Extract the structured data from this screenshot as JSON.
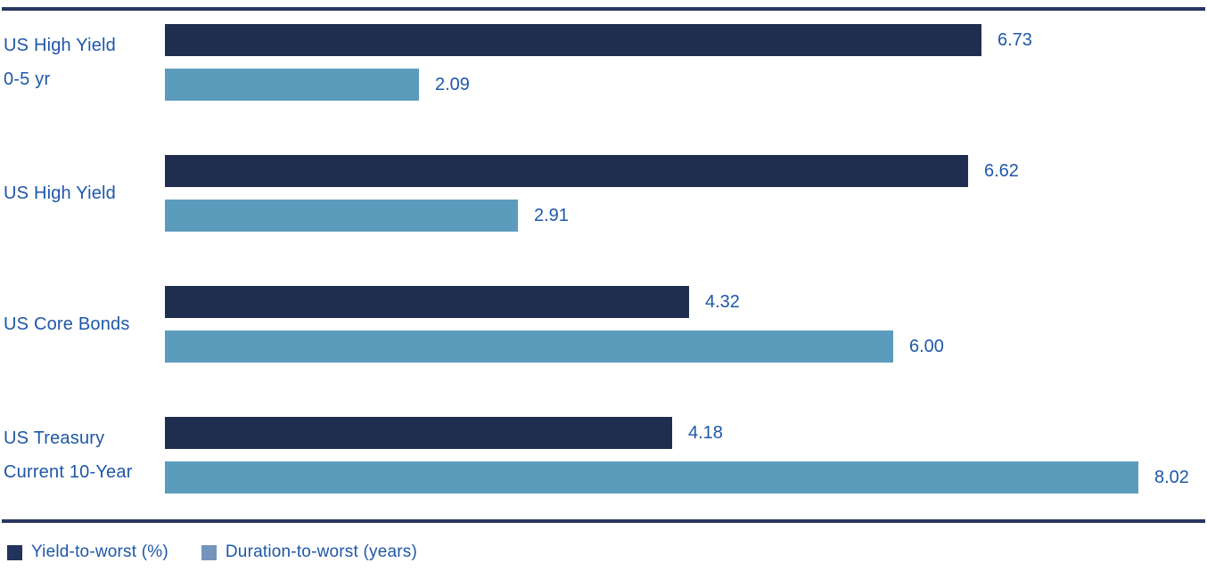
{
  "chart_data": {
    "type": "bar",
    "orientation": "horizontal",
    "title": "",
    "categories": [
      "US High Yield 0-5 yr",
      "US High Yield",
      "US Core Bonds",
      "US Treasury Current 10-Year"
    ],
    "categories_lines": [
      [
        "US High Yield",
        "0-5 yr"
      ],
      [
        "US High Yield"
      ],
      [
        "US Core Bonds"
      ],
      [
        "US Treasury",
        "Current 10-Year"
      ]
    ],
    "series": [
      {
        "name": "Yield-to-worst (%)",
        "values": [
          6.73,
          6.62,
          4.32,
          4.18
        ],
        "value_labels": [
          "6.73",
          "6.62",
          "4.32",
          "4.18"
        ],
        "color": "#1F2E50",
        "legend_swatch_color": "#22345B"
      },
      {
        "name": "Duration-to-worst (years)",
        "values": [
          2.09,
          2.91,
          6.0,
          8.02
        ],
        "value_labels": [
          "2.09",
          "2.91",
          "6.00",
          "8.02"
        ],
        "color": "#5B9BBC",
        "legend_swatch_color": "#7594BC"
      }
    ],
    "xlim": [
      0,
      8.02
    ],
    "grid": false,
    "legend_position": "bottom-left",
    "value_label_color": "#1E57A8",
    "category_label_color": "#1E57A8",
    "rule_color": "#283760"
  }
}
